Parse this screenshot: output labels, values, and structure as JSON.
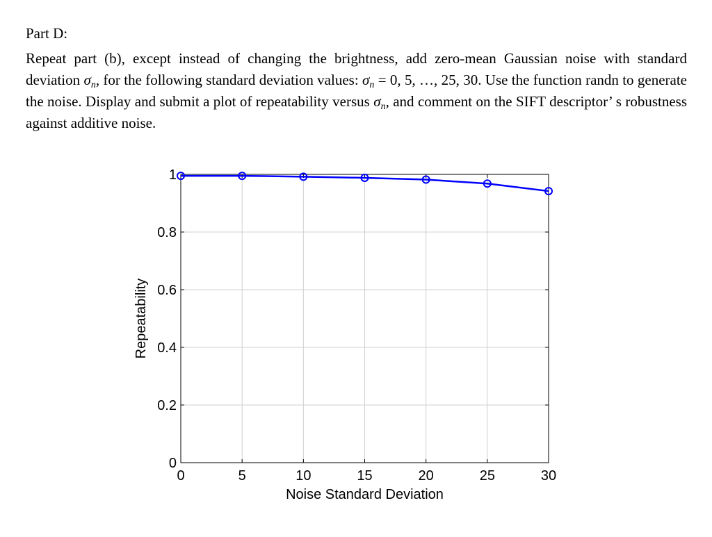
{
  "document": {
    "heading": "Part D:",
    "paragraph": {
      "p1": "Repeat part (b), except instead of changing the brightness, add zero-mean Gaussian noise with standard deviation ",
      "sigma_symbol": "σ",
      "sigma_subscript": "n",
      "p2": ", for the following standard deviation values: ",
      "p3": " = 0, 5, …, 25, 30. Use the function randn to generate the noise. Display and submit a plot of repeatability versus ",
      "p4": ", and comment on the SIFT descriptor’ s robustness against additive noise."
    }
  },
  "chart_data": {
    "type": "line",
    "title": "",
    "xlabel": "Noise Standard Deviation",
    "ylabel": "Repeatability",
    "xlim": [
      0,
      30
    ],
    "ylim": [
      0,
      1
    ],
    "xticks": [
      0,
      5,
      10,
      15,
      20,
      25,
      30
    ],
    "yticks": [
      0,
      0.2,
      0.4,
      0.6,
      0.8,
      1
    ],
    "xtick_labels": [
      "0",
      "5",
      "10",
      "15",
      "20",
      "25",
      "30"
    ],
    "ytick_labels": [
      "0",
      "0.2",
      "0.4",
      "0.6",
      "0.8",
      "1"
    ],
    "grid": true,
    "series": [
      {
        "x": [
          0,
          5,
          10,
          15,
          20,
          25,
          30
        ],
        "values": [
          0.995,
          0.995,
          0.992,
          0.988,
          0.982,
          0.968,
          0.942
        ],
        "color": "#0000ff",
        "marker": "circle"
      }
    ]
  }
}
